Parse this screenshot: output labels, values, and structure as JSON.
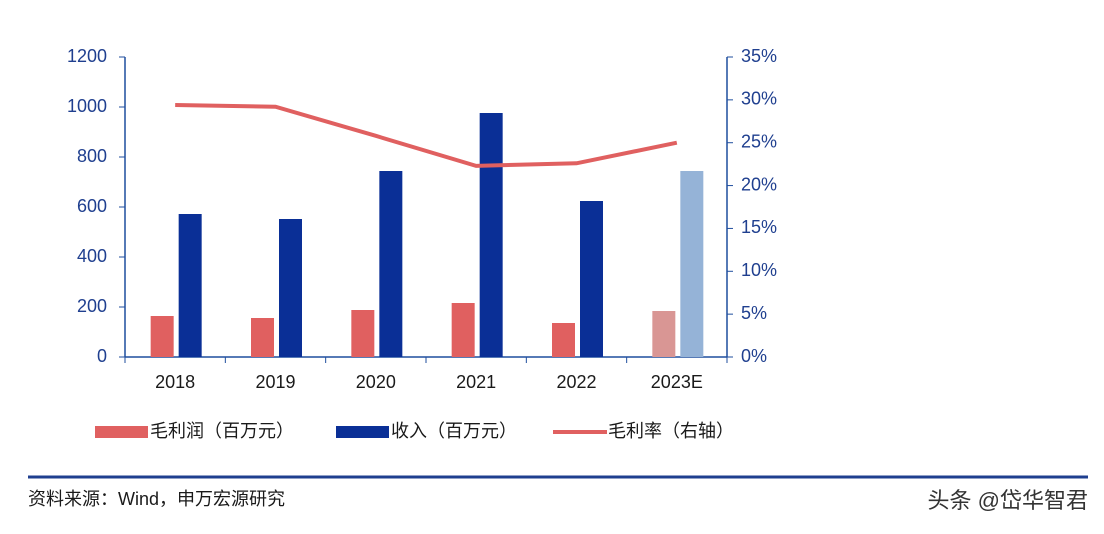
{
  "chart_data": {
    "type": "bar-line",
    "categories": [
      "2018",
      "2019",
      "2020",
      "2021",
      "2022",
      "2023E"
    ],
    "series": [
      {
        "name": "毛利润（百万元）",
        "type": "bar",
        "color": "#e06060",
        "colors": [
          "#e06060",
          "#e06060",
          "#e06060",
          "#e06060",
          "#e06060",
          "#d99694"
        ],
        "values": [
          164,
          156,
          188,
          216,
          136,
          184
        ]
      },
      {
        "name": "收入（百万元）",
        "type": "bar",
        "color": "#0a2f96",
        "colors": [
          "#0a2f96",
          "#0a2f96",
          "#0a2f96",
          "#0a2f96",
          "#0a2f96",
          "#95b3d7"
        ],
        "values": [
          572,
          552,
          744,
          976,
          624,
          744
        ]
      },
      {
        "name": "毛利率（右轴）",
        "type": "line",
        "axis": "y2",
        "color": "#e06060",
        "values": [
          29.4,
          29.2,
          25.8,
          22.3,
          22.6,
          25.0
        ]
      }
    ],
    "ylim": [
      0,
      1200
    ],
    "yticks": [
      0,
      200,
      400,
      600,
      800,
      1000,
      1200
    ],
    "y2lim": [
      0,
      35
    ],
    "y2ticks": [
      {
        "value": 0,
        "label": "0%"
      },
      {
        "value": 5,
        "label": "5%"
      },
      {
        "value": 10,
        "label": "10%"
      },
      {
        "value": 15,
        "label": "15%"
      },
      {
        "value": 20,
        "label": "20%"
      },
      {
        "value": 25,
        "label": "25%"
      },
      {
        "value": 30,
        "label": "30%"
      },
      {
        "value": 35,
        "label": "35%"
      }
    ],
    "grid": false,
    "legend": "bottom"
  },
  "footer": {
    "source": "资料来源：Wind，申万宏源研究",
    "watermark": "头条 @岱华智君"
  }
}
